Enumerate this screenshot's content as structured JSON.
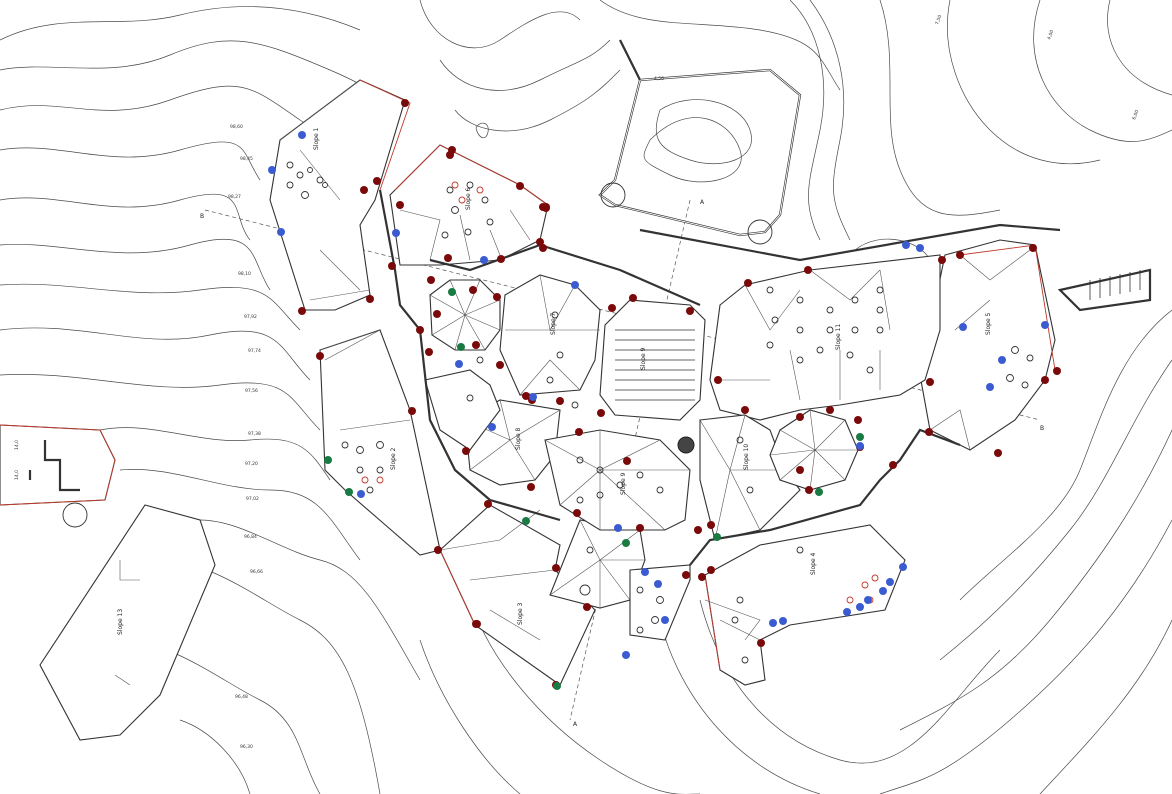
{
  "colors": {
    "marker_red": "#7a0a0a",
    "marker_blue": "#3b5bd1",
    "marker_green": "#1a7a44",
    "wall_red": "#c0392b"
  },
  "labels": {
    "slope_1": "Slope 1",
    "slope_2": "Slope 2",
    "slope_3": "Slope 3",
    "slope_4": "Slope 4",
    "slope_5": "Slope 5",
    "slope_6": "Slope 6",
    "slope_7": "Slope 7",
    "slope_8": "Slope 8",
    "slope_9": "Slope 9",
    "slope_10": "Slope 10",
    "slope_11": "Slope 11",
    "slope_12": "Slope 12",
    "slope_13": "Slope 13"
  },
  "section_marks": {
    "a_top": "A",
    "a_bottom": "A",
    "b_left": "B",
    "b_right": "B"
  },
  "elevations": {
    "e1": "4,56",
    "e2": "7,50",
    "e3": "4,00",
    "e4": "6,00",
    "e5": "14,0",
    "e6": "14,0"
  },
  "contour_labels": [
    "98,60",
    "98,45",
    "98,27",
    "98,10",
    "97,92",
    "97,74",
    "97,56",
    "97,38",
    "97,20",
    "97,02",
    "96,84",
    "96,66",
    "96,48",
    "96,30"
  ]
}
